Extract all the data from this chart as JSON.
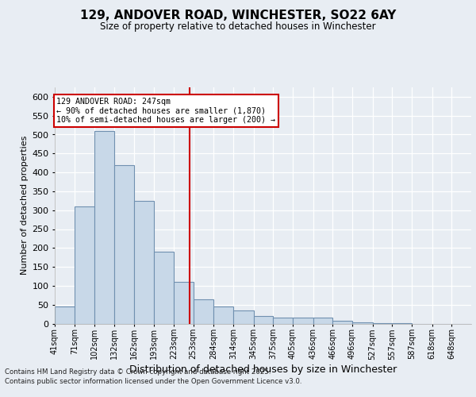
{
  "title": "129, ANDOVER ROAD, WINCHESTER, SO22 6AY",
  "subtitle": "Size of property relative to detached houses in Winchester",
  "xlabel": "Distribution of detached houses by size in Winchester",
  "ylabel": "Number of detached properties",
  "annotation_line1": "129 ANDOVER ROAD: 247sqm",
  "annotation_line2": "← 90% of detached houses are smaller (1,870)",
  "annotation_line3": "10% of semi-detached houses are larger (200) →",
  "bar_color": "#c8d8e8",
  "bar_edge_color": "#7090b0",
  "vline_color": "#cc0000",
  "vline_x": 247,
  "categories": [
    "41sqm",
    "71sqm",
    "102sqm",
    "132sqm",
    "162sqm",
    "193sqm",
    "223sqm",
    "253sqm",
    "284sqm",
    "314sqm",
    "345sqm",
    "375sqm",
    "405sqm",
    "436sqm",
    "466sqm",
    "496sqm",
    "527sqm",
    "557sqm",
    "587sqm",
    "618sqm",
    "648sqm"
  ],
  "bin_left_edges": [
    41,
    71,
    102,
    132,
    162,
    193,
    223,
    253,
    284,
    314,
    345,
    375,
    405,
    436,
    466,
    496,
    527,
    557,
    587,
    618,
    648
  ],
  "bin_widths": [
    30,
    31,
    30,
    30,
    31,
    30,
    30,
    31,
    30,
    31,
    30,
    30,
    31,
    30,
    30,
    31,
    30,
    30,
    31,
    30,
    30
  ],
  "values": [
    45,
    310,
    510,
    420,
    325,
    190,
    110,
    65,
    45,
    35,
    20,
    15,
    15,
    15,
    8,
    3,
    2,
    1,
    0,
    0,
    0
  ],
  "ylim": [
    0,
    625
  ],
  "yticks": [
    0,
    50,
    100,
    150,
    200,
    250,
    300,
    350,
    400,
    450,
    500,
    550,
    600
  ],
  "background_color": "#e8edf3",
  "plot_bg_color": "#e8edf3",
  "footer_line1": "Contains HM Land Registry data © Crown copyright and database right 2025.",
  "footer_line2": "Contains public sector information licensed under the Open Government Licence v3.0."
}
